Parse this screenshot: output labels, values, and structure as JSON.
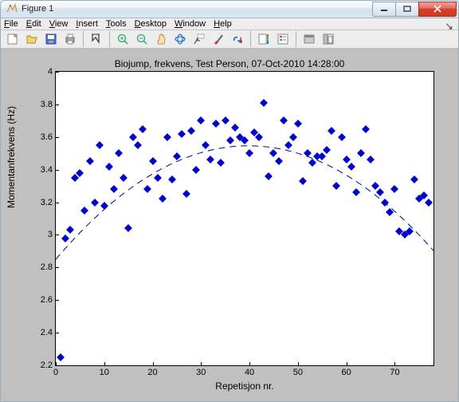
{
  "window": {
    "title": "Figure 1"
  },
  "menu": {
    "items": [
      {
        "label": "File",
        "ul": 0
      },
      {
        "label": "Edit",
        "ul": 0
      },
      {
        "label": "View",
        "ul": 0
      },
      {
        "label": "Insert",
        "ul": 0
      },
      {
        "label": "Tools",
        "ul": 0
      },
      {
        "label": "Desktop",
        "ul": 0
      },
      {
        "label": "Window",
        "ul": 0
      },
      {
        "label": "Help",
        "ul": 0
      }
    ]
  },
  "toolbar": {
    "icons": [
      "new-figure",
      "open",
      "save",
      "print",
      "|",
      "edit-plot",
      "|",
      "zoom-in",
      "zoom-out",
      "pan",
      "rotate-3d",
      "data-cursor",
      "brush",
      "link",
      "|",
      "colorbar",
      "legend",
      "|",
      "hide-tools",
      "dock"
    ]
  },
  "chart": {
    "type": "scatter-with-fit",
    "title": "Biojump, frekvens, Test Person, 07-Oct-2010 14:28:00",
    "title_fontsize": 12,
    "xlabel": "Repetisjon nr.",
    "ylabel": "Momentanfrekvens (Hz)",
    "label_fontsize": 12,
    "xlim": [
      0,
      78
    ],
    "ylim": [
      2.2,
      4.0
    ],
    "xticks": [
      0,
      10,
      20,
      30,
      40,
      50,
      60,
      70
    ],
    "yticks": [
      2.2,
      2.4,
      2.6,
      2.8,
      3.0,
      3.2,
      3.4,
      3.6,
      3.8,
      4.0
    ],
    "background_color": "#ffffff",
    "figure_background": "#c0c0c0",
    "axis_color": "#000000",
    "marker_color": "#0000cd",
    "marker_style": "diamond",
    "marker_size": 7,
    "fit": {
      "type": "poly2",
      "color": "#000080",
      "style": "dashed",
      "line_width": 1,
      "coeffs": [
        -0.00044,
        0.035,
        2.85
      ]
    },
    "points": [
      [
        1,
        2.25
      ],
      [
        2,
        2.98
      ],
      [
        3,
        3.03
      ],
      [
        4,
        3.35
      ],
      [
        5,
        3.38
      ],
      [
        6,
        3.15
      ],
      [
        7,
        3.45
      ],
      [
        8,
        3.2
      ],
      [
        9,
        3.55
      ],
      [
        10,
        3.18
      ],
      [
        11,
        3.42
      ],
      [
        12,
        3.28
      ],
      [
        13,
        3.5
      ],
      [
        14,
        3.35
      ],
      [
        15,
        3.04
      ],
      [
        16,
        3.6
      ],
      [
        17,
        3.55
      ],
      [
        18,
        3.65
      ],
      [
        19,
        3.28
      ],
      [
        20,
        3.45
      ],
      [
        21,
        3.35
      ],
      [
        22,
        3.22
      ],
      [
        23,
        3.6
      ],
      [
        24,
        3.34
      ],
      [
        25,
        3.48
      ],
      [
        26,
        3.62
      ],
      [
        27,
        3.25
      ],
      [
        28,
        3.64
      ],
      [
        29,
        3.4
      ],
      [
        30,
        3.7
      ],
      [
        31,
        3.55
      ],
      [
        32,
        3.46
      ],
      [
        33,
        3.68
      ],
      [
        34,
        3.44
      ],
      [
        35,
        3.7
      ],
      [
        36,
        3.58
      ],
      [
        37,
        3.66
      ],
      [
        38,
        3.6
      ],
      [
        39,
        3.58
      ],
      [
        40,
        3.5
      ],
      [
        41,
        3.63
      ],
      [
        42,
        3.6
      ],
      [
        43,
        3.81
      ],
      [
        44,
        3.36
      ],
      [
        45,
        3.5
      ],
      [
        46,
        3.45
      ],
      [
        47,
        3.7
      ],
      [
        48,
        3.55
      ],
      [
        49,
        3.6
      ],
      [
        50,
        3.68
      ],
      [
        51,
        3.33
      ],
      [
        52,
        3.5
      ],
      [
        53,
        3.44
      ],
      [
        54,
        3.48
      ],
      [
        55,
        3.48
      ],
      [
        56,
        3.52
      ],
      [
        57,
        3.64
      ],
      [
        58,
        3.3
      ],
      [
        59,
        3.6
      ],
      [
        60,
        3.46
      ],
      [
        61,
        3.42
      ],
      [
        62,
        3.26
      ],
      [
        63,
        3.5
      ],
      [
        64,
        3.65
      ],
      [
        65,
        3.46
      ],
      [
        66,
        3.3
      ],
      [
        67,
        3.26
      ],
      [
        68,
        3.2
      ],
      [
        69,
        3.14
      ],
      [
        70,
        3.28
      ],
      [
        71,
        3.02
      ],
      [
        72,
        3.0
      ],
      [
        73,
        3.02
      ],
      [
        74,
        3.34
      ],
      [
        75,
        3.22
      ],
      [
        76,
        3.24
      ],
      [
        77,
        3.2
      ]
    ]
  }
}
